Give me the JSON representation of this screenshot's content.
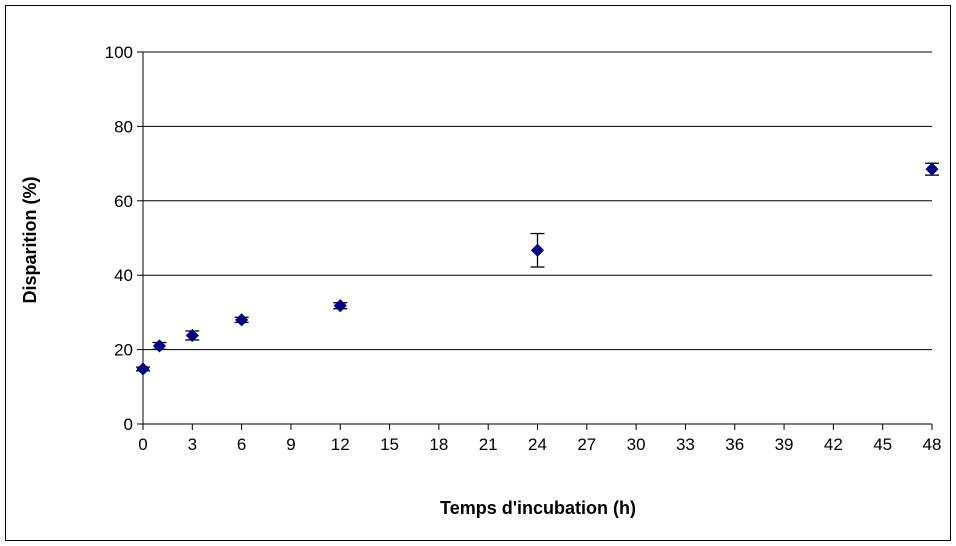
{
  "chart_data": {
    "type": "scatter",
    "xlabel": "Temps d'incubation (h)",
    "ylabel": "Disparition (%)",
    "xlim": [
      0,
      48
    ],
    "ylim": [
      0,
      100
    ],
    "x_ticks": [
      0,
      3,
      6,
      9,
      12,
      15,
      18,
      21,
      24,
      27,
      30,
      33,
      36,
      39,
      42,
      45,
      48
    ],
    "y_ticks": [
      0,
      20,
      40,
      60,
      80,
      100
    ],
    "grid": "horizontal",
    "legend": "none",
    "marker": "diamond",
    "marker_color": "#000080",
    "series": [
      {
        "x": [
          0,
          1,
          3,
          6,
          12,
          24,
          48
        ],
        "y": [
          14.8,
          21.0,
          23.8,
          28.0,
          31.8,
          46.7,
          68.5
        ],
        "error": [
          0.5,
          0.9,
          1.2,
          0.7,
          0.8,
          4.5,
          1.6
        ]
      }
    ]
  }
}
